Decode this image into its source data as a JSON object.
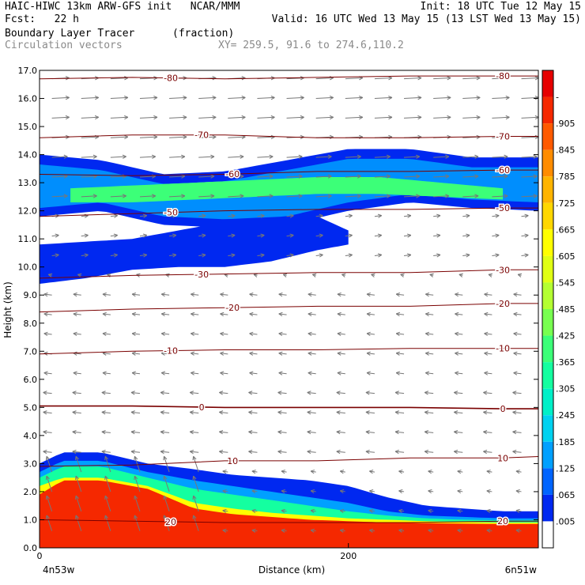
{
  "header": {
    "line1_left": "HAIC-HIWC 13km ARW-GFS init   NCAR/MMM",
    "line1_right": "Init: 18 UTC Tue 12 May 15",
    "fcst": "Fcst:   22 h",
    "valid": "Valid: 16 UTC Wed 13 May 15 (13 LST Wed 13 May 15)",
    "field_name": "Boundary Layer Tracer",
    "field_units": "(fraction)",
    "vector_label": "Circulation vectors",
    "xy_label": "XY= 259.5, 91.6 to 274.6,110.2"
  },
  "chart_data": {
    "type": "heatmap",
    "title": "Boundary Layer Tracer",
    "xlabel": "Distance (km)",
    "ylabel": "Height (km)",
    "xlim": [
      0,
      323
    ],
    "ylim": [
      0,
      17
    ],
    "x_ticks": [
      0,
      200
    ],
    "x_tick_labels": [
      "0",
      "200"
    ],
    "x_end_labels": [
      "4n53w",
      "6n51w"
    ],
    "y_ticks": [
      0,
      1,
      2,
      3,
      4,
      5,
      6,
      7,
      8,
      9,
      10,
      11,
      12,
      13,
      14,
      15,
      16,
      17
    ],
    "y_tick_labels": [
      "0.0",
      "1.0",
      "2.0",
      "3.0",
      "4.0",
      "5.0",
      "6.0",
      "7.0",
      "8.0",
      "9.0",
      "10.0",
      "11.0",
      "12.0",
      "13.0",
      "14.0",
      "15.0",
      "16.0",
      "17.0"
    ],
    "colorbar": {
      "labels": [
        "-",
        ".905",
        ".845",
        ".785",
        ".725",
        ".665",
        ".605",
        ".545",
        ".485",
        ".425",
        ".365",
        ".305",
        ".245",
        ".185",
        ".125",
        ".065",
        ".005"
      ],
      "colors": [
        "#e60000",
        "#f52800",
        "#ff5a00",
        "#ff8c00",
        "#ffb400",
        "#ffd700",
        "#ffff00",
        "#e0ff14",
        "#b4ff32",
        "#78ff50",
        "#3cff78",
        "#14ffa0",
        "#00f0c8",
        "#00d2f0",
        "#00a0ff",
        "#0064ff",
        "#0028f0",
        "#ffffff"
      ]
    },
    "temperature_contours": [
      {
        "label": "-80",
        "x": [
          0,
          60,
          120,
          180,
          240,
          300,
          323
        ],
        "y": [
          16.7,
          16.75,
          16.7,
          16.75,
          16.8,
          16.8,
          16.8
        ]
      },
      {
        "label": "-70",
        "x": [
          0,
          60,
          120,
          180,
          240,
          300,
          323
        ],
        "y": [
          14.6,
          14.7,
          14.7,
          14.6,
          14.6,
          14.65,
          14.65
        ]
      },
      {
        "label": "-60",
        "x": [
          0,
          60,
          120,
          180,
          240,
          300,
          323
        ],
        "y": [
          13.3,
          13.25,
          13.3,
          13.4,
          13.4,
          13.45,
          13.45
        ]
      },
      {
        "label": "-50",
        "x": [
          0,
          60,
          120,
          180,
          240,
          300,
          323
        ],
        "y": [
          11.8,
          11.9,
          12.0,
          12.05,
          12.05,
          12.1,
          12.1
        ]
      },
      {
        "label": "-30",
        "x": [
          0,
          60,
          120,
          180,
          240,
          300,
          323
        ],
        "y": [
          9.6,
          9.7,
          9.75,
          9.8,
          9.8,
          9.9,
          9.9
        ]
      },
      {
        "label": "-20",
        "x": [
          0,
          60,
          120,
          180,
          240,
          300,
          323
        ],
        "y": [
          8.4,
          8.5,
          8.55,
          8.6,
          8.6,
          8.7,
          8.7
        ]
      },
      {
        "label": "-10",
        "x": [
          0,
          60,
          120,
          180,
          240,
          300,
          323
        ],
        "y": [
          6.9,
          7.0,
          7.05,
          7.05,
          7.1,
          7.1,
          7.1
        ]
      },
      {
        "label": "0",
        "x": [
          0,
          60,
          120,
          180,
          240,
          300,
          323
        ],
        "y": [
          5.05,
          5.05,
          5.0,
          5.0,
          5.0,
          4.95,
          4.95
        ]
      },
      {
        "label": "10",
        "x": [
          0,
          60,
          120,
          180,
          240,
          300,
          323
        ],
        "y": [
          2.9,
          2.95,
          3.1,
          3.1,
          3.2,
          3.2,
          3.25
        ]
      },
      {
        "label": "20",
        "x": [
          0,
          60,
          120,
          180,
          240,
          300,
          323
        ],
        "y": [
          1.0,
          0.95,
          0.9,
          0.9,
          0.9,
          0.95,
          0.95
        ]
      }
    ],
    "tracer_layers": [
      {
        "value": 0.005,
        "x": [
          0,
          15,
          40,
          70,
          100,
          125,
          150,
          175,
          200,
          225,
          250,
          275,
          300,
          323
        ],
        "top": [
          3.0,
          3.4,
          3.4,
          3.0,
          2.8,
          2.6,
          2.5,
          2.4,
          2.2,
          1.8,
          1.5,
          1.4,
          1.3,
          1.3
        ]
      },
      {
        "value": 0.125,
        "x": [
          0,
          15,
          40,
          70,
          100,
          125,
          150,
          175,
          200,
          225,
          250,
          275,
          300,
          323
        ],
        "top": [
          2.7,
          3.1,
          3.1,
          2.7,
          2.4,
          2.2,
          2.0,
          1.8,
          1.6,
          1.3,
          1.15,
          1.1,
          1.05,
          1.05
        ]
      },
      {
        "value": 0.305,
        "x": [
          0,
          15,
          40,
          70,
          100,
          125,
          150,
          175,
          200,
          225,
          250,
          275,
          300,
          323
        ],
        "top": [
          2.5,
          2.9,
          2.9,
          2.5,
          2.1,
          1.9,
          1.7,
          1.5,
          1.3,
          1.15,
          1.05,
          1.0,
          0.98,
          0.98
        ]
      },
      {
        "value": 0.605,
        "x": [
          0,
          15,
          40,
          70,
          100,
          125,
          150,
          175,
          200,
          225,
          250,
          275,
          300,
          323
        ],
        "top": [
          2.2,
          2.5,
          2.5,
          2.2,
          1.6,
          1.4,
          1.25,
          1.15,
          1.05,
          1.0,
          0.95,
          0.92,
          0.9,
          0.9
        ]
      },
      {
        "value": 0.905,
        "x": [
          0,
          15,
          40,
          70,
          100,
          125,
          150,
          175,
          200,
          225,
          250,
          275,
          300,
          323
        ],
        "top": [
          1.9,
          2.4,
          2.4,
          2.1,
          1.4,
          1.2,
          1.1,
          1.0,
          0.95,
          0.9,
          0.88,
          0.86,
          0.85,
          0.85
        ]
      }
    ],
    "anvil_plume": {
      "value": 0.005,
      "x": [
        0,
        40,
        80,
        120,
        160,
        200,
        240,
        280,
        323
      ],
      "top": [
        14.0,
        13.8,
        13.3,
        13.4,
        13.8,
        14.2,
        14.2,
        13.9,
        13.9
      ],
      "bottom": [
        11.8,
        12.0,
        11.5,
        11.4,
        11.5,
        12.0,
        12.3,
        12.1,
        12.0
      ]
    },
    "lower_plume": {
      "value": 0.005,
      "x": [
        0,
        30,
        60,
        90,
        120,
        150,
        180,
        200
      ],
      "top": [
        10.8,
        10.9,
        11.0,
        11.3,
        11.6,
        11.9,
        11.8,
        11.3
      ],
      "bottom": [
        9.4,
        9.6,
        9.9,
        10.0,
        10.0,
        10.2,
        10.6,
        10.8
      ]
    },
    "core_plume": {
      "value": 0.365,
      "x": [
        20,
        60,
        100,
        140,
        180,
        220,
        260,
        300
      ],
      "top": [
        12.8,
        12.9,
        13.0,
        13.1,
        13.2,
        13.2,
        13.0,
        12.8
      ],
      "bottom": [
        12.3,
        12.3,
        12.4,
        12.5,
        12.6,
        12.6,
        12.5,
        12.4
      ]
    }
  }
}
